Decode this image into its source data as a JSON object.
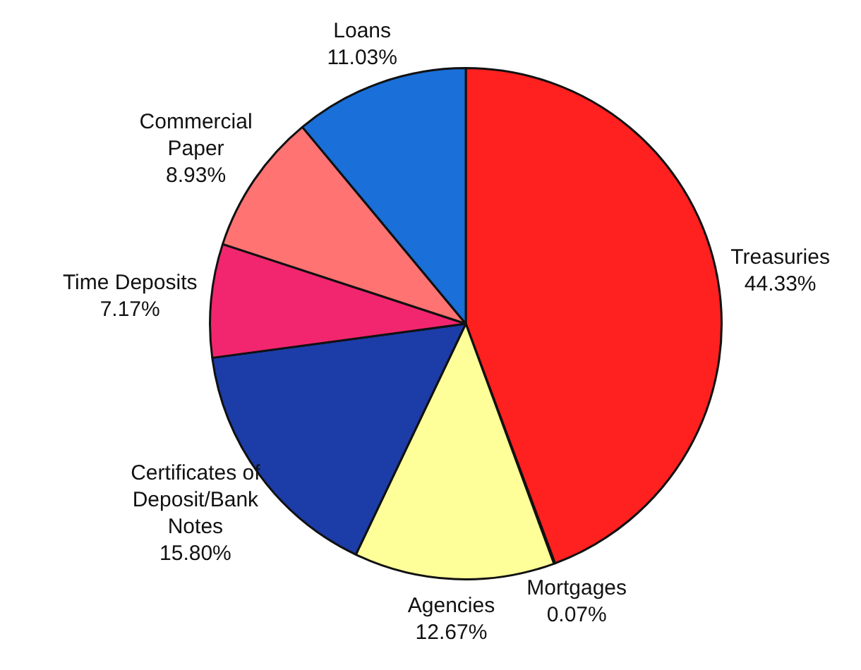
{
  "chart_data": {
    "type": "pie",
    "categories": [
      "Treasuries",
      "Mortgages",
      "Agencies",
      "Certificates of Deposit/Bank Notes",
      "Time Deposits",
      "Commercial Paper",
      "Loans"
    ],
    "values": [
      44.33,
      0.07,
      12.67,
      15.8,
      7.17,
      8.93,
      11.03
    ],
    "colors": [
      "#ff2020",
      "#ff2020",
      "#ffff99",
      "#1c3ca8",
      "#f2266e",
      "#ff7373",
      "#1a6fd8"
    ],
    "value_labels": [
      "44.33%",
      "0.07%",
      "12.67%",
      "15.80%",
      "7.17%",
      "8.93%",
      "11.03%"
    ],
    "legend": false
  }
}
